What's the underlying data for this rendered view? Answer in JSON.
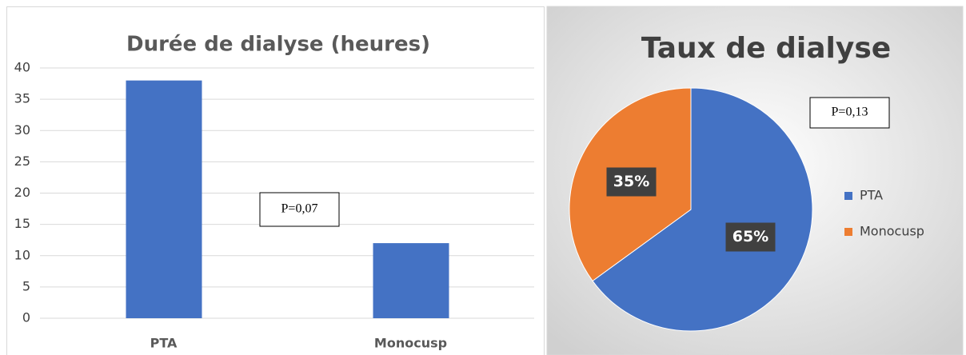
{
  "chart_data": [
    {
      "type": "bar",
      "title": "Durée de dialyse (heures)",
      "categories": [
        "PTA",
        "Monocusp"
      ],
      "values": [
        38,
        12
      ],
      "color": "#4472c4",
      "ylim": [
        0,
        40
      ],
      "yticks": [
        0,
        5,
        10,
        15,
        20,
        25,
        30,
        35,
        40
      ],
      "grid": true,
      "annotation": "P=0,07"
    },
    {
      "type": "pie",
      "title": "Taux de dialyse",
      "categories": [
        "PTA",
        "Monocusp"
      ],
      "values": [
        65,
        35
      ],
      "value_labels": [
        "65%",
        "35%"
      ],
      "colors": [
        "#4472c4",
        "#ed7d31"
      ],
      "legend": "right",
      "annotation": "P=0,13"
    }
  ]
}
